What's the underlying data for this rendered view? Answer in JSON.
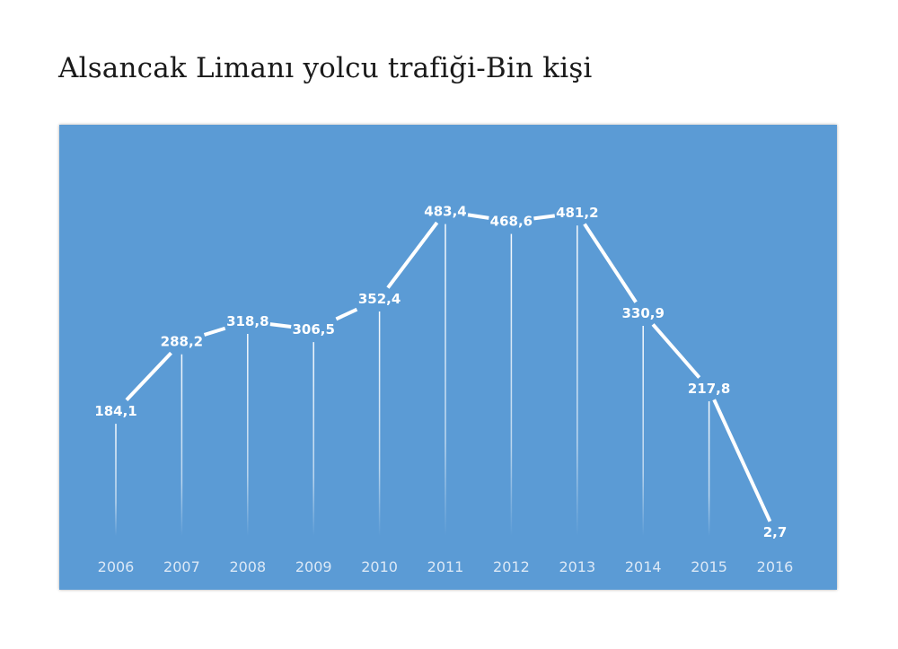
{
  "title": "Alsancak Limanı yolcu trafiği-Bin kişi",
  "colors": {
    "panel": "#5b9bd5",
    "line": "#ffffff",
    "tick_text": "#dbe8f6"
  },
  "chart_data": {
    "type": "line",
    "title": "Alsancak Limanı yolcu trafiği-Bin kişi",
    "xlabel": "",
    "ylabel": "",
    "categories": [
      "2006",
      "2007",
      "2008",
      "2009",
      "2010",
      "2011",
      "2012",
      "2013",
      "2014",
      "2015",
      "2016"
    ],
    "values": [
      184.1,
      288.2,
      318.8,
      306.5,
      352.4,
      483.4,
      468.6,
      481.2,
      330.9,
      217.8,
      2.7
    ],
    "value_labels": [
      "184,1",
      "288,2",
      "318,8",
      "306,5",
      "352,4",
      "483,4",
      "468,6",
      "481,2",
      "330,9",
      "217,8",
      "2,7"
    ],
    "ylim": [
      0,
      500
    ],
    "grid": false,
    "legend": "none",
    "drop_lines": true
  }
}
